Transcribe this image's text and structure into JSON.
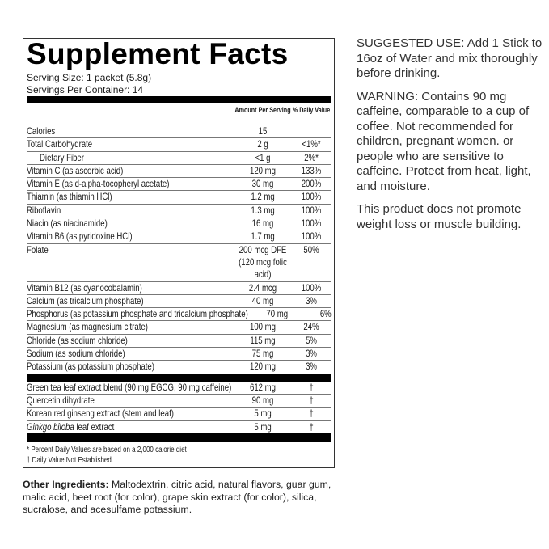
{
  "panel": {
    "title": "Supplement Facts",
    "serving_size": "Serving Size: 1 packet (5.8g)",
    "servings_per_container": "Servings Per Container: 14",
    "col_amount": "Amount Per Serving",
    "col_dv": "% Daily Value",
    "nutrients": [
      {
        "name": "Calories",
        "amount": "15",
        "dv": ""
      },
      {
        "name": "Total Carbohydrate",
        "amount": "2 g",
        "dv": "<1%*"
      },
      {
        "name": "Dietary Fiber",
        "amount": "<1 g",
        "dv": "2%*",
        "indent": true
      },
      {
        "name": "Vitamin C (as ascorbic acid)",
        "amount": "120 mg",
        "dv": "133%"
      },
      {
        "name": "Vitamin E (as d-alpha-tocopheryl acetate)",
        "amount": "30 mg",
        "dv": "200%"
      },
      {
        "name": "Thiamin (as thiamin HCl)",
        "amount": "1.2 mg",
        "dv": "100%"
      },
      {
        "name": "Riboflavin",
        "amount": "1.3 mg",
        "dv": "100%"
      },
      {
        "name": "Niacin (as niacinamide)",
        "amount": "16 mg",
        "dv": "100%"
      },
      {
        "name": "Vitamin B6 (as pyridoxine HCl)",
        "amount": "1.7 mg",
        "dv": "100%"
      },
      {
        "name": "Folate",
        "amount": "200 mcg DFE",
        "amount2": "(120 mcg folic acid)",
        "dv": "50%"
      },
      {
        "name": "Vitamin B12 (as cyanocobalamin)",
        "amount": "2.4 mcg",
        "dv": "100%"
      },
      {
        "name": "Calcium (as tricalcium phosphate)",
        "amount": "40 mg",
        "dv": "3%"
      },
      {
        "name": "Phosphorus (as potassium phosphate and tricalcium phosphate)",
        "amount": "70 mg",
        "dv": "6%"
      },
      {
        "name": "Magnesium (as magnesium citrate)",
        "amount": "100 mg",
        "dv": "24%"
      },
      {
        "name": "Chloride (as sodium chloride)",
        "amount": "115 mg",
        "dv": "5%"
      },
      {
        "name": "Sodium (as sodium chloride)",
        "amount": "75 mg",
        "dv": "3%"
      },
      {
        "name": "Potassium (as potassium phosphate)",
        "amount": "120 mg",
        "dv": "3%"
      }
    ],
    "extracts": [
      {
        "name": "Green tea leaf extract blend (90 mg EGCG, 90 mg caffeine)",
        "amount": "612 mg",
        "dv": "†"
      },
      {
        "name": "Quercetin dihydrate",
        "amount": "90 mg",
        "dv": "†"
      },
      {
        "name": "Korean red ginseng extract (stem and leaf)",
        "amount": "5 mg",
        "dv": "†"
      },
      {
        "name": "Ginkgo biloba",
        "name_suffix": " leaf extract",
        "amount": "5 mg",
        "dv": "†",
        "italic": true
      }
    ],
    "footnote_1": "* Percent Daily Values are based on a 2,000 calorie diet",
    "footnote_2": "† Daily Value Not Established."
  },
  "other_ingredients": {
    "label": "Other Ingredients:",
    "text": " Maltodextrin, citric acid, natural flavors, guar gum, malic acid, beet root (for color), grape skin extract (for color), silica, sucralose, and acesulfame potassium."
  },
  "right": {
    "suggested_label": "SUGGESTED USE:",
    "suggested_text": " Add 1 Stick to 16oz of Water and mix thoroughly before drinking.",
    "warning_label": "WARNING:",
    "warning_text": " Contains 90 mg caffeine, comparable to a cup of coffee.  Not recommended for children, pregnant women. or people who are sensitive to caffeine.  Protect from heat, light, and moisture.",
    "note": "This product does not promote weight loss or muscle building."
  }
}
